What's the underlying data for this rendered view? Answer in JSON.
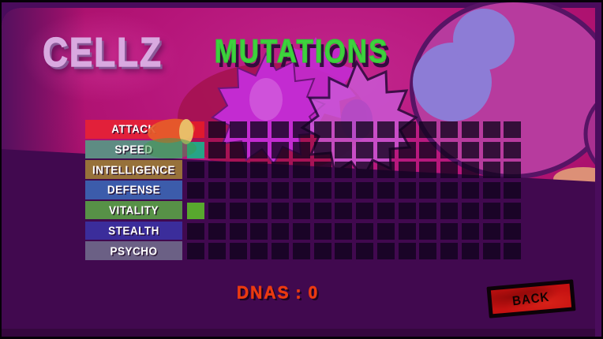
{
  "header": {
    "logo_text": "CELLZ",
    "title": "MUTATIONS"
  },
  "mutations": {
    "slots_per_stat": 16,
    "empty_slot_color": "rgba(16,2,28,0.78)",
    "stats": [
      {
        "label": "ATTACK",
        "band_color": "#e2203a",
        "filled_slots": 1,
        "fill_color": "#df1a2e"
      },
      {
        "label": "SPEED",
        "band_color": "#5e8c83",
        "filled_slots": 1,
        "fill_color": "#27a487"
      },
      {
        "label": "INTELLIGENCE",
        "band_color": "#97713a",
        "filled_slots": 0,
        "fill_color": null
      },
      {
        "label": "DEFENSE",
        "band_color": "#3c5cab",
        "filled_slots": 0,
        "fill_color": null
      },
      {
        "label": "VITALITY",
        "band_color": "#579147",
        "filled_slots": 1,
        "fill_color": "#58a82e"
      },
      {
        "label": "STEALTH",
        "band_color": "#3b2d9b",
        "filled_slots": 0,
        "fill_color": null
      },
      {
        "label": "PSYCHO",
        "band_color": "#6b6085",
        "filled_slots": 0,
        "fill_color": null
      }
    ]
  },
  "footer": {
    "dna_label": "DNAS",
    "dna_separator": ":",
    "dna_value": "0",
    "back_button_label": "BACK"
  },
  "colors": {
    "title_green": "#3ed13e",
    "logo_pink": "#d9a9e0",
    "dna_red": "#ea3a10",
    "back_red": "#c51111",
    "background_magenta": "#b01575",
    "background_dark_purple": "#41094f"
  }
}
